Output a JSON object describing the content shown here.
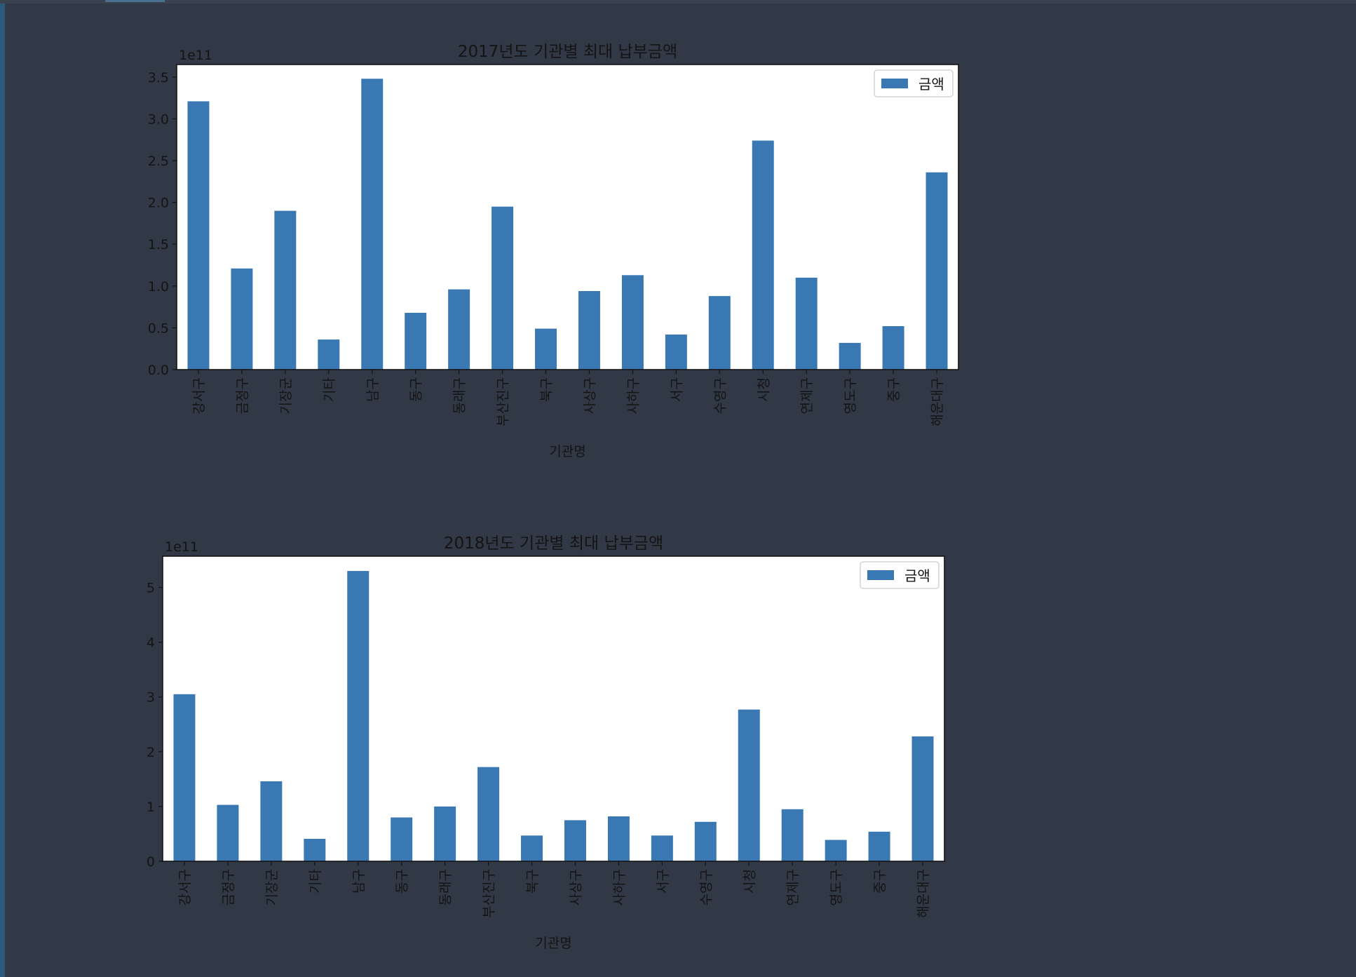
{
  "chart_data": [
    {
      "type": "bar",
      "title": "2017년도 기관별 최대 납부금액",
      "xlabel": "기관명",
      "ylabel": "",
      "offset_text": "1e11",
      "categories": [
        "강서구",
        "금정구",
        "기장군",
        "기타",
        "남구",
        "동구",
        "동래구",
        "부산진구",
        "북구",
        "사상구",
        "사하구",
        "서구",
        "수영구",
        "시청",
        "연제구",
        "영도구",
        "중구",
        "해운대구"
      ],
      "series": [
        {
          "name": "금액",
          "color": "#3a78b3",
          "values": [
            321000000000.0,
            121000000000.0,
            190000000000.0,
            36000000000.0,
            348000000000.0,
            68000000000.0,
            96000000000.0,
            195000000000.0,
            49000000000.0,
            94000000000.0,
            113000000000.0,
            42000000000.0,
            88000000000.0,
            274000000000.0,
            110000000000.0,
            32000000000.0,
            52000000000.0,
            236000000000.0
          ]
        }
      ],
      "ylim": [
        0,
        365000000000.0
      ],
      "yticks": [
        0,
        50000000000.0,
        100000000000.0,
        150000000000.0,
        200000000000.0,
        250000000000.0,
        300000000000.0,
        350000000000.0
      ],
      "ytick_labels": [
        "0.0",
        "0.5",
        "1.0",
        "1.5",
        "2.0",
        "2.5",
        "3.0",
        "3.5"
      ],
      "legend": "top-right",
      "grid": false
    },
    {
      "type": "bar",
      "title": "2018년도 기관별 최대 납부금액",
      "xlabel": "기관명",
      "ylabel": "",
      "offset_text": "1e11",
      "categories": [
        "강서구",
        "금정구",
        "기장군",
        "기타",
        "남구",
        "동구",
        "동래구",
        "부산진구",
        "북구",
        "사상구",
        "사하구",
        "서구",
        "수영구",
        "시청",
        "연제구",
        "영도구",
        "중구",
        "해운대구"
      ],
      "series": [
        {
          "name": "금액",
          "color": "#3a78b3",
          "values": [
            305000000000.0,
            103000000000.0,
            146000000000.0,
            41000000000.0,
            530000000000.0,
            80000000000.0,
            100000000000.0,
            172000000000.0,
            47000000000.0,
            75000000000.0,
            82000000000.0,
            47000000000.0,
            72000000000.0,
            277000000000.0,
            95000000000.0,
            39000000000.0,
            54000000000.0,
            228000000000.0
          ]
        }
      ],
      "ylim": [
        0,
        557000000000.0
      ],
      "yticks": [
        0,
        100000000000.0,
        200000000000.0,
        300000000000.0,
        400000000000.0,
        500000000000.0
      ],
      "ytick_labels": [
        "0",
        "1",
        "2",
        "3",
        "4",
        "5"
      ],
      "legend": "top-right",
      "grid": false
    }
  ]
}
